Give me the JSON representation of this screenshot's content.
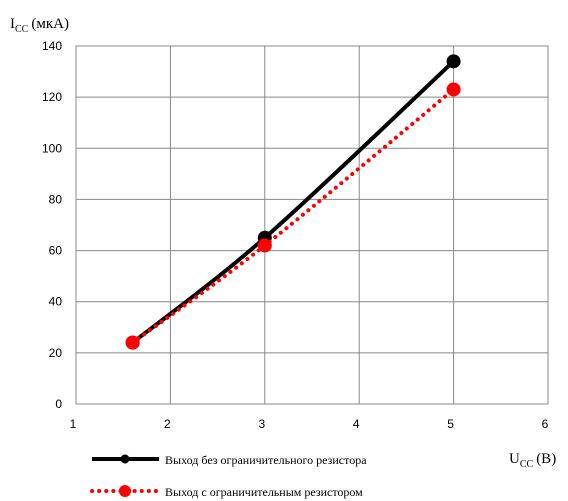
{
  "chart_data": {
    "type": "line",
    "x_range": [
      1,
      6
    ],
    "y_range": [
      0,
      140
    ],
    "x_ticks": [
      "1",
      "2",
      "3",
      "4",
      "5",
      "6"
    ],
    "y_ticks": [
      "0",
      "20",
      "40",
      "60",
      "80",
      "100",
      "120",
      "140"
    ],
    "grid": true,
    "legend_placement": "bottom",
    "ylabel": {
      "main": "I",
      "sub": "CC",
      "unit": "(мкА)"
    },
    "xlabel": {
      "main": "U",
      "sub": "CC",
      "unit": "(В)"
    },
    "series": [
      {
        "name": "Выход без ограничительного резистора",
        "color": "#000000",
        "line_style": "solid",
        "x": [
          1.6,
          3,
          5
        ],
        "y": [
          24,
          65,
          134
        ]
      },
      {
        "name": "Выход с ограничительным резистором",
        "color": "#ff0000",
        "line_style": "dotted",
        "x": [
          1.6,
          3,
          5
        ],
        "y": [
          24,
          62,
          123
        ]
      }
    ]
  }
}
